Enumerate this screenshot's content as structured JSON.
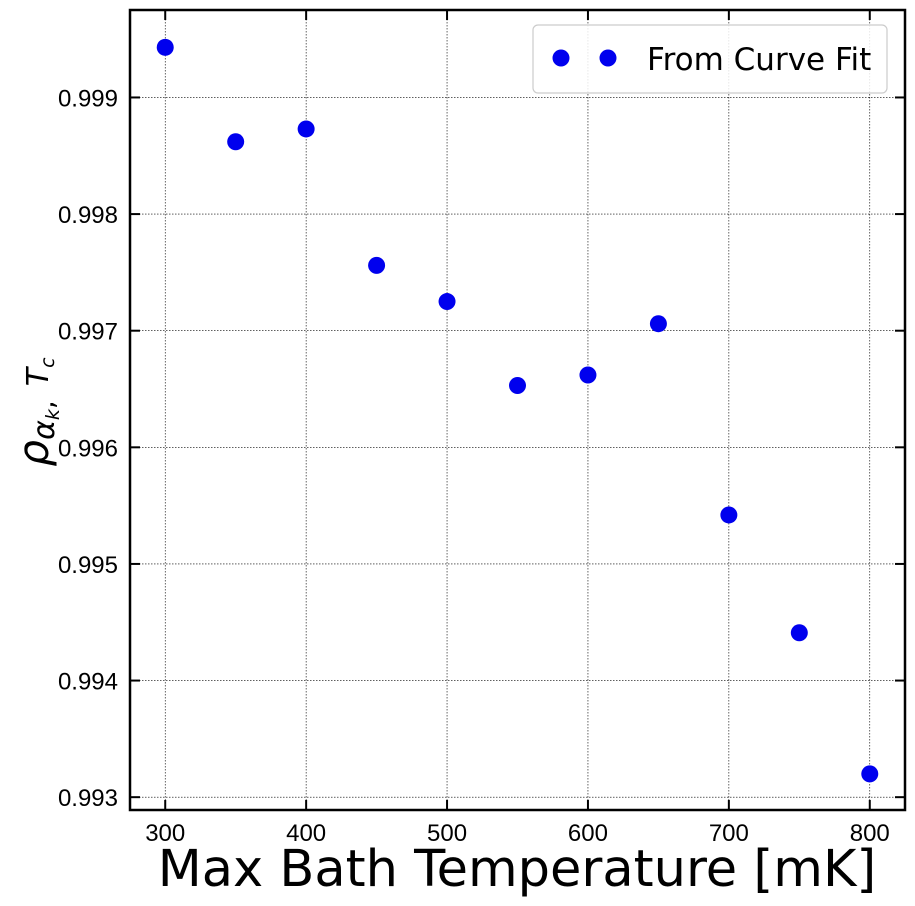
{
  "chart_data": {
    "type": "scatter",
    "title": "",
    "xlabel": "Max Bath Temperature [mK]",
    "ylabel_parts": {
      "rho": "ρ",
      "alpha": "α",
      "alpha_sub": "k",
      "comma": ",",
      "T": "T",
      "T_sub": "c"
    },
    "xlim": [
      275,
      825
    ],
    "ylim": [
      0.99289,
      0.99975
    ],
    "xticks": [
      300,
      400,
      500,
      600,
      700,
      800
    ],
    "yticks": [
      0.993,
      0.994,
      0.995,
      0.996,
      0.997,
      0.998,
      0.999
    ],
    "grid": true,
    "legend_position": "top-right",
    "series": [
      {
        "name": "From Curve Fit",
        "color": "#0000ee",
        "marker": "circle",
        "x": [
          300,
          350,
          400,
          450,
          500,
          550,
          600,
          650,
          700,
          750,
          800
        ],
        "y": [
          0.99943,
          0.99862,
          0.99873,
          0.99756,
          0.99725,
          0.99653,
          0.99662,
          0.99706,
          0.99542,
          0.99441,
          0.9932
        ]
      }
    ]
  }
}
